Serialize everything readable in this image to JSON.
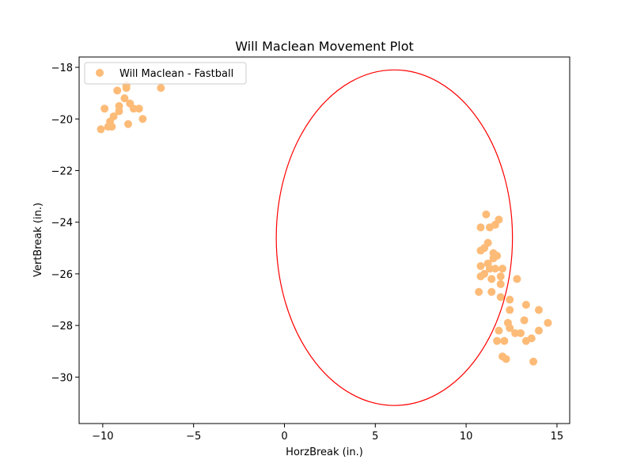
{
  "chart_data": {
    "type": "scatter",
    "title": "Will Maclean Movement Plot",
    "xlabel": "HorzBreak (in.)",
    "ylabel": "VertBreak (in.)",
    "xlim": [
      -11.3,
      15.7
    ],
    "ylim": [
      -31.8,
      -17.6
    ],
    "xticks": [
      -10,
      -5,
      0,
      5,
      10,
      15
    ],
    "yticks": [
      -30,
      -28,
      -26,
      -24,
      -22,
      -20,
      -18
    ],
    "grid": false,
    "legend_position": "upper-left",
    "series": [
      {
        "name": "Will Maclean - Fastball",
        "color": "#fdbb78",
        "points": [
          [
            -8.7,
            -18.7
          ],
          [
            -8.7,
            -18.8
          ],
          [
            -9.2,
            -18.9
          ],
          [
            -6.8,
            -18.8
          ],
          [
            -8.8,
            -19.2
          ],
          [
            -9.1,
            -19.5
          ],
          [
            -8.5,
            -19.4
          ],
          [
            -8.3,
            -19.6
          ],
          [
            -8.0,
            -19.6
          ],
          [
            -9.1,
            -19.7
          ],
          [
            -9.9,
            -19.6
          ],
          [
            -9.4,
            -19.9
          ],
          [
            -7.8,
            -20.0
          ],
          [
            -9.6,
            -20.1
          ],
          [
            -9.5,
            -20.3
          ],
          [
            -9.7,
            -20.3
          ],
          [
            -8.6,
            -20.2
          ],
          [
            -10.1,
            -20.4
          ],
          [
            11.1,
            -23.7
          ],
          [
            11.8,
            -23.9
          ],
          [
            11.6,
            -24.1
          ],
          [
            11.3,
            -24.2
          ],
          [
            10.8,
            -24.2
          ],
          [
            11.2,
            -24.8
          ],
          [
            11.0,
            -25.0
          ],
          [
            10.8,
            -25.1
          ],
          [
            11.5,
            -25.2
          ],
          [
            11.7,
            -25.3
          ],
          [
            11.5,
            -25.4
          ],
          [
            11.2,
            -25.6
          ],
          [
            10.8,
            -25.7
          ],
          [
            11.3,
            -25.8
          ],
          [
            11.6,
            -25.8
          ],
          [
            12.0,
            -25.8
          ],
          [
            11.0,
            -26.0
          ],
          [
            10.8,
            -26.1
          ],
          [
            11.9,
            -26.1
          ],
          [
            11.4,
            -26.2
          ],
          [
            12.8,
            -26.2
          ],
          [
            11.9,
            -26.4
          ],
          [
            11.4,
            -26.7
          ],
          [
            10.7,
            -26.7
          ],
          [
            11.9,
            -26.9
          ],
          [
            12.4,
            -27.0
          ],
          [
            13.3,
            -27.2
          ],
          [
            12.4,
            -27.4
          ],
          [
            14.0,
            -27.4
          ],
          [
            13.2,
            -27.8
          ],
          [
            12.3,
            -27.9
          ],
          [
            14.5,
            -27.9
          ],
          [
            12.4,
            -28.1
          ],
          [
            11.8,
            -28.2
          ],
          [
            14.0,
            -28.2
          ],
          [
            12.7,
            -28.3
          ],
          [
            13.0,
            -28.3
          ],
          [
            13.6,
            -28.5
          ],
          [
            12.1,
            -28.6
          ],
          [
            13.3,
            -28.6
          ],
          [
            11.7,
            -28.6
          ],
          [
            12.0,
            -29.2
          ],
          [
            12.2,
            -29.3
          ],
          [
            13.7,
            -29.4
          ]
        ]
      }
    ],
    "ellipse": {
      "color": "#ff0000",
      "center": [
        6.05,
        -24.6
      ],
      "x_radius": 6.5,
      "y_radius": 6.5
    }
  }
}
